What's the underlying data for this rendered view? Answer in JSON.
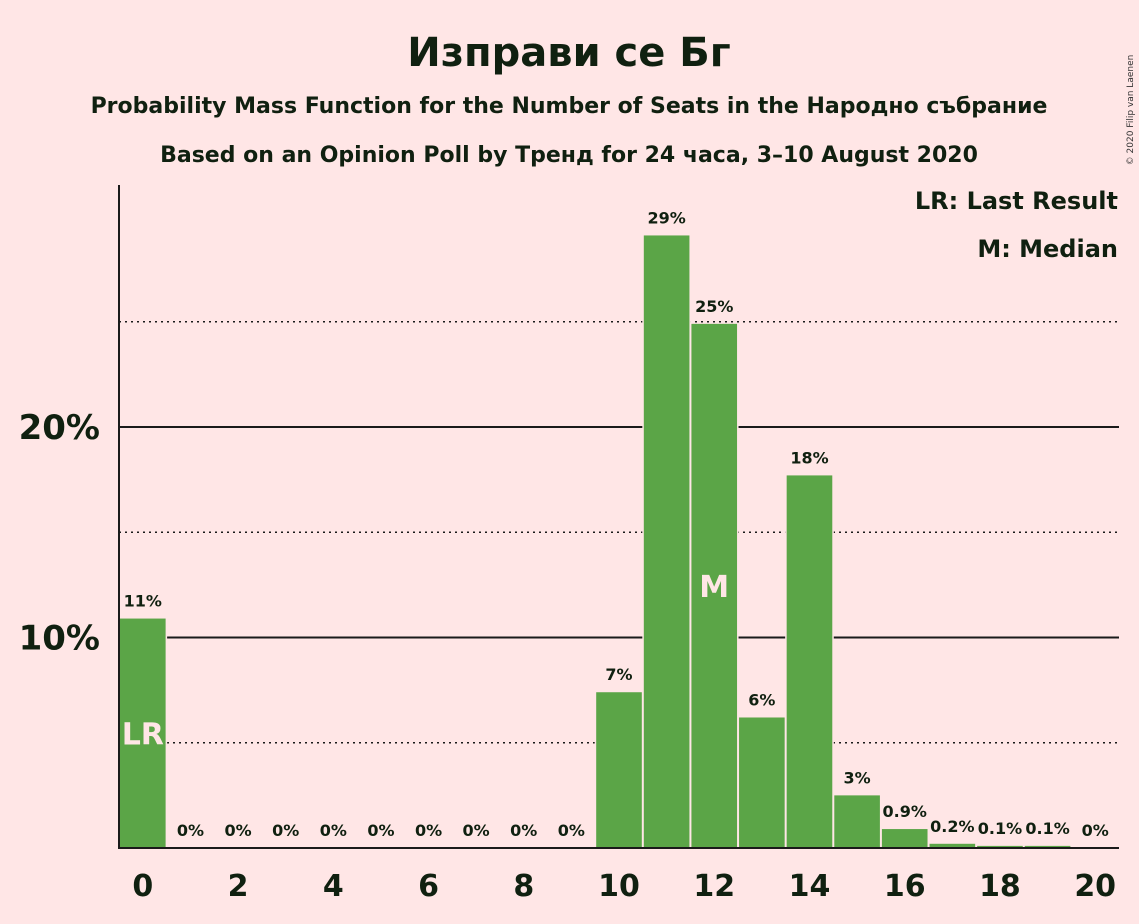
{
  "chart_data": {
    "type": "bar",
    "title": "Изправи се Бг",
    "subtitle_1": "Probability Mass Function for the Number of Seats in the Народно събрание",
    "subtitle_2": "Based on an Opinion Poll by Тренд for 24 часа, 3–10 August 2020",
    "legend": [
      "LR: Last Result",
      "M: Median"
    ],
    "copyright": "© 2020 Filip van Laenen",
    "categories": [
      0,
      1,
      2,
      3,
      4,
      5,
      6,
      7,
      8,
      9,
      10,
      11,
      12,
      13,
      14,
      15,
      16,
      17,
      18,
      19,
      20
    ],
    "values": [
      10.9,
      0,
      0,
      0,
      0,
      0,
      0,
      0,
      0,
      0,
      7.4,
      29.1,
      24.9,
      6.2,
      17.7,
      2.5,
      0.9,
      0.2,
      0.1,
      0.1,
      0
    ],
    "data_labels": [
      "11%",
      "0%",
      "0%",
      "0%",
      "0%",
      "0%",
      "0%",
      "0%",
      "0%",
      "0%",
      "7%",
      "29%",
      "25%",
      "6%",
      "18%",
      "3%",
      "0.9%",
      "0.2%",
      "0.1%",
      "0.1%",
      "0%"
    ],
    "x_tick_labels": [
      "0",
      "2",
      "4",
      "6",
      "8",
      "10",
      "12",
      "14",
      "16",
      "18",
      "20"
    ],
    "y_tick_labels": [
      "10%",
      "20%"
    ],
    "ylim": [
      0,
      31.8
    ],
    "solid_gridlines": [
      10,
      20
    ],
    "dotted_gridlines": [
      5,
      15,
      25
    ],
    "markers": [
      {
        "category": 0,
        "text": "LR"
      },
      {
        "category": 12,
        "text": "M"
      }
    ],
    "bar_color": "#5BA547",
    "background_color": "#FFE6E6"
  }
}
